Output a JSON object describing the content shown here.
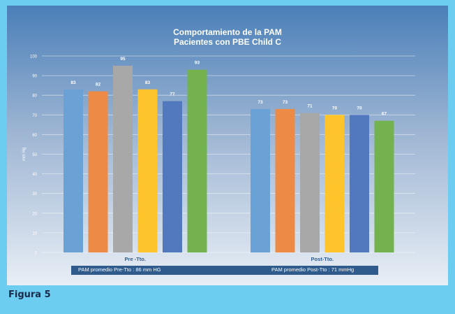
{
  "caption": "Figura 5",
  "summary": {
    "pre": "PAM  promedio  Pre-Tto : 86 mm HG",
    "post": "PAM  promedio   Post-Tto : 71 mmHg"
  },
  "colors": {
    "series": [
      "#6aa2d6",
      "#ed8a45",
      "#a8a8a8",
      "#fdc52b",
      "#5279be",
      "#73b24e"
    ],
    "category_label": "#2e5b8c",
    "axis_text": "#ffffff",
    "data_label": "#ffffff"
  },
  "chart_data": {
    "type": "bar",
    "title": [
      "Comportamiento  de la PAM",
      "Pacientes  con PBE  Child C"
    ],
    "ylabel": "mm Hg",
    "ylim": [
      0,
      100
    ],
    "yticks": [
      0,
      10,
      20,
      30,
      40,
      50,
      60,
      70,
      80,
      90,
      100
    ],
    "grid": true,
    "categories": [
      "Pre -Tto.",
      "Post-Tto."
    ],
    "groups": [
      {
        "category": "Pre -Tto.",
        "values": [
          83,
          82,
          95,
          83,
          77,
          93
        ]
      },
      {
        "category": "Post-Tto.",
        "values": [
          73,
          73,
          71,
          70,
          70,
          67
        ]
      }
    ]
  }
}
